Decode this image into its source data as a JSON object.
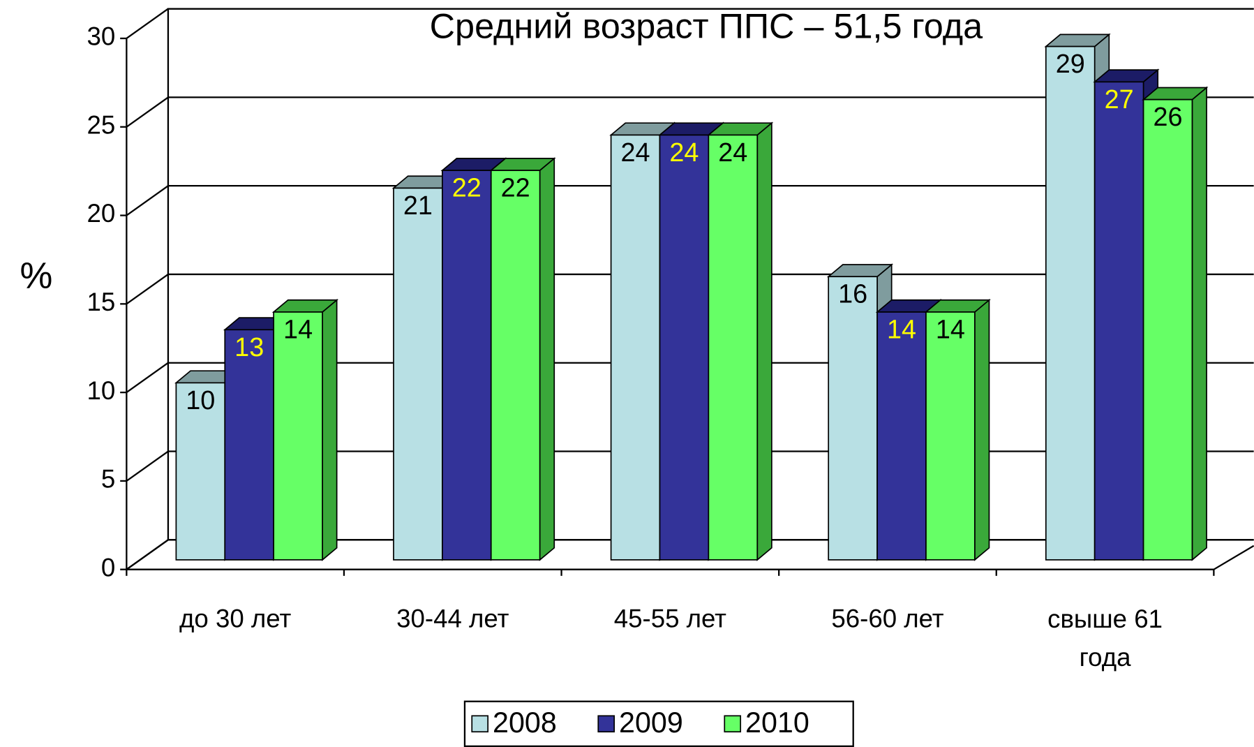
{
  "chart_data": {
    "type": "bar3d",
    "title": "Средний возраст ППС – 51,5 года",
    "y_label": "%",
    "categories": [
      "до 30 лет",
      "30-44 лет",
      "45-55 лет",
      "56-60 лет",
      "свыше 61 года"
    ],
    "series": [
      {
        "name": "2008",
        "color": "#b8e0e4",
        "side_color": "#7f9c9e",
        "label_color": "#000000",
        "values": [
          10,
          21,
          24,
          16,
          29
        ]
      },
      {
        "name": "2009",
        "color": "#333399",
        "side_color": "#1c1c66",
        "label_color": "#ffff00",
        "values": [
          13,
          22,
          24,
          14,
          27
        ]
      },
      {
        "name": "2010",
        "color": "#66ff66",
        "side_color": "#3aa83a",
        "label_color": "#000000",
        "values": [
          14,
          22,
          24,
          14,
          26
        ]
      }
    ],
    "ylim": [
      0,
      30
    ],
    "yticks": [
      0,
      5,
      10,
      15,
      20,
      25,
      30
    ],
    "grid": true,
    "legend": "bottom"
  }
}
